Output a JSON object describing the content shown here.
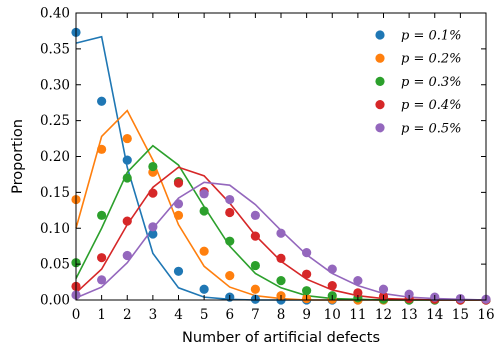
{
  "chart_data": {
    "type": "scatter",
    "xlabel": "Number of artificial defects",
    "ylabel": "Proportion",
    "xlim": [
      0,
      16
    ],
    "ylim": [
      0,
      0.4
    ],
    "xticks": [
      0,
      1,
      2,
      3,
      4,
      5,
      6,
      7,
      8,
      9,
      10,
      11,
      12,
      13,
      14,
      15,
      16
    ],
    "yticks": [
      0.0,
      0.05,
      0.1,
      0.15,
      0.2,
      0.25,
      0.3,
      0.35,
      0.4
    ],
    "ytick_labels": [
      "0.00",
      "0.05",
      "0.10",
      "0.15",
      "0.20",
      "0.25",
      "0.30",
      "0.35",
      "0.40"
    ],
    "grid": false,
    "legend_position": "top-right",
    "series": [
      {
        "name": "p = 0.1%",
        "color": "#1f77b4",
        "points_x": [
          0,
          1,
          2,
          3,
          4,
          5,
          6,
          7,
          8,
          9,
          10,
          11,
          12,
          13,
          14,
          15,
          16
        ],
        "points_y": [
          0.373,
          0.277,
          0.195,
          0.092,
          0.04,
          0.015,
          0.004,
          0.001,
          0.0,
          0.0,
          0.0,
          0.0,
          0.0,
          0.0,
          0.0,
          0.0,
          0.0
        ],
        "line_x": [
          0,
          1,
          2,
          3,
          4,
          5,
          6,
          7,
          8,
          9,
          10,
          11,
          12,
          13,
          14,
          15,
          16
        ],
        "line_y": [
          0.358,
          0.367,
          0.185,
          0.065,
          0.017,
          0.004,
          0.001,
          0.0,
          0.0,
          0.0,
          0.0,
          0.0,
          0.0,
          0.0,
          0.0,
          0.0,
          0.0
        ]
      },
      {
        "name": "p = 0.2%",
        "color": "#ff7f0e",
        "points_x": [
          0,
          1,
          2,
          3,
          4,
          5,
          6,
          7,
          8,
          9,
          10,
          11,
          12,
          13,
          14,
          15,
          16
        ],
        "points_y": [
          0.14,
          0.21,
          0.225,
          0.178,
          0.118,
          0.068,
          0.034,
          0.015,
          0.006,
          0.002,
          0.001,
          0.0,
          0.0,
          0.0,
          0.0,
          0.0,
          0.0
        ],
        "line_x": [
          0,
          1,
          2,
          3,
          4,
          5,
          6,
          7,
          8,
          9,
          10,
          11,
          12,
          13,
          14,
          15,
          16
        ],
        "line_y": [
          0.1,
          0.228,
          0.264,
          0.195,
          0.105,
          0.047,
          0.018,
          0.006,
          0.002,
          0.0,
          0.0,
          0.0,
          0.0,
          0.0,
          0.0,
          0.0,
          0.0
        ]
      },
      {
        "name": "p = 0.3%",
        "color": "#2ca02c",
        "points_x": [
          0,
          1,
          2,
          3,
          4,
          5,
          6,
          7,
          8,
          9,
          10,
          11,
          12,
          13,
          14,
          15,
          16
        ],
        "points_y": [
          0.052,
          0.118,
          0.17,
          0.186,
          0.165,
          0.124,
          0.082,
          0.048,
          0.027,
          0.013,
          0.006,
          0.003,
          0.001,
          0.0,
          0.0,
          0.0,
          0.0
        ],
        "line_x": [
          0,
          1,
          2,
          3,
          4,
          5,
          6,
          7,
          8,
          9,
          10,
          11,
          12,
          13,
          14,
          15,
          16
        ],
        "line_y": [
          0.03,
          0.1,
          0.178,
          0.215,
          0.188,
          0.13,
          0.075,
          0.037,
          0.017,
          0.006,
          0.002,
          0.001,
          0.0,
          0.0,
          0.0,
          0.0,
          0.0
        ]
      },
      {
        "name": "p = 0.4%",
        "color": "#d62728",
        "points_x": [
          0,
          1,
          2,
          3,
          4,
          5,
          6,
          7,
          8,
          9,
          10,
          11,
          12,
          13,
          14,
          15,
          16
        ],
        "points_y": [
          0.019,
          0.059,
          0.11,
          0.149,
          0.163,
          0.151,
          0.122,
          0.089,
          0.058,
          0.036,
          0.02,
          0.01,
          0.005,
          0.002,
          0.001,
          0.0,
          0.0
        ],
        "line_x": [
          0,
          1,
          2,
          3,
          4,
          5,
          6,
          7,
          8,
          9,
          10,
          11,
          12,
          13,
          14,
          15,
          16
        ],
        "line_y": [
          0.01,
          0.043,
          0.105,
          0.157,
          0.185,
          0.173,
          0.135,
          0.09,
          0.054,
          0.029,
          0.014,
          0.006,
          0.002,
          0.001,
          0.0,
          0.0,
          0.0
        ]
      },
      {
        "name": "p = 0.5%",
        "color": "#9467bd",
        "points_x": [
          0,
          1,
          2,
          3,
          4,
          5,
          6,
          7,
          8,
          9,
          10,
          11,
          12,
          13,
          14,
          15,
          16
        ],
        "points_y": [
          0.007,
          0.028,
          0.062,
          0.102,
          0.134,
          0.148,
          0.14,
          0.118,
          0.093,
          0.066,
          0.043,
          0.027,
          0.015,
          0.008,
          0.004,
          0.002,
          0.001
        ],
        "line_x": [
          0,
          1,
          2,
          3,
          4,
          5,
          6,
          7,
          8,
          9,
          10,
          11,
          12,
          13,
          14,
          15,
          16
        ],
        "line_y": [
          0.003,
          0.018,
          0.052,
          0.1,
          0.142,
          0.164,
          0.16,
          0.133,
          0.097,
          0.063,
          0.037,
          0.02,
          0.009,
          0.004,
          0.002,
          0.001,
          0.0
        ]
      }
    ]
  }
}
